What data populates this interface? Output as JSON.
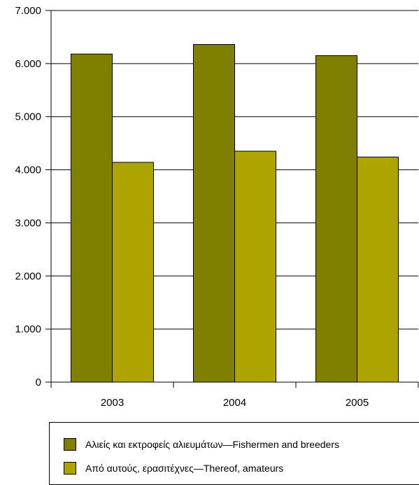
{
  "chart_data": {
    "type": "bar",
    "categories": [
      "2003",
      "2004",
      "2005"
    ],
    "series": [
      {
        "name": "Αλιείς και εκτροφείς αλιευμάτων—Fishermen and breeders",
        "values": [
          6180,
          6360,
          6150
        ],
        "color": "#808000"
      },
      {
        "name": "Από αυτούς, ερασιτέχνες—Thereof, amateurs",
        "values": [
          4140,
          4350,
          4240
        ],
        "color": "#ADA400"
      }
    ],
    "yticks": [
      "0",
      "1.000",
      "2.000",
      "3.000",
      "4.000",
      "5.000",
      "6.000",
      "7.000"
    ],
    "ylim": [
      0,
      7000
    ],
    "grid": true,
    "legend_position": "bottom"
  }
}
